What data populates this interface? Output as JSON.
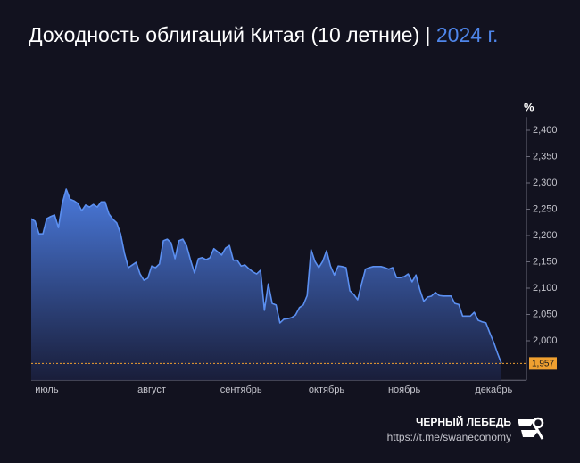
{
  "chart_data": {
    "type": "area",
    "title": "Доходность облигаций Китая (10 летние) |",
    "title_highlight": "2024 г.",
    "y_label": "%",
    "color": "#5b8ff0",
    "categories": [
      null,
      null,
      null,
      null,
      "июль",
      null,
      null,
      null,
      null,
      null,
      null,
      null,
      null,
      null,
      null,
      null,
      null,
      null,
      null,
      null,
      null,
      null,
      null,
      null,
      null,
      null,
      null,
      null,
      null,
      null,
      null,
      "август",
      null,
      null,
      null,
      null,
      null,
      null,
      null,
      null,
      null,
      null,
      null,
      null,
      null,
      null,
      null,
      null,
      null,
      null,
      null,
      null,
      null,
      null,
      "сентябрь",
      null,
      null,
      null,
      null,
      null,
      null,
      null,
      null,
      null,
      null,
      null,
      null,
      null,
      null,
      null,
      null,
      null,
      null,
      null,
      null,
      null,
      "октябрь",
      null,
      null,
      null,
      null,
      null,
      null,
      null,
      null,
      null,
      null,
      null,
      null,
      null,
      null,
      null,
      null,
      null,
      null,
      null,
      "ноябрь",
      null,
      null,
      null,
      null,
      null,
      null,
      null,
      null,
      null,
      null,
      null,
      null,
      null,
      null,
      null,
      null,
      null,
      null,
      null,
      null,
      null,
      null,
      "декабрь",
      null,
      null
    ],
    "values": [
      2.232,
      2.227,
      2.203,
      2.203,
      2.232,
      2.236,
      2.239,
      2.215,
      2.261,
      2.288,
      2.269,
      2.266,
      2.261,
      2.247,
      2.258,
      2.254,
      2.259,
      2.254,
      2.264,
      2.264,
      2.241,
      2.231,
      2.224,
      2.203,
      2.166,
      2.139,
      2.144,
      2.149,
      2.127,
      2.115,
      2.119,
      2.142,
      2.139,
      2.146,
      2.19,
      2.193,
      2.186,
      2.156,
      2.19,
      2.193,
      2.18,
      2.153,
      2.129,
      2.156,
      2.158,
      2.154,
      2.158,
      2.175,
      2.169,
      2.163,
      2.176,
      2.181,
      2.153,
      2.153,
      2.142,
      2.144,
      2.137,
      2.131,
      2.127,
      2.134,
      2.058,
      2.108,
      2.071,
      2.068,
      2.034,
      2.041,
      2.042,
      2.044,
      2.049,
      2.063,
      2.068,
      2.086,
      2.173,
      2.151,
      2.139,
      2.151,
      2.171,
      2.142,
      2.125,
      2.142,
      2.141,
      2.139,
      2.095,
      2.088,
      2.078,
      2.108,
      2.136,
      2.139,
      2.141,
      2.141,
      2.141,
      2.139,
      2.136,
      2.139,
      2.12,
      2.12,
      2.122,
      2.127,
      2.112,
      2.125,
      2.097,
      2.075,
      2.083,
      2.085,
      2.092,
      2.086,
      2.085,
      2.085,
      2.085,
      2.071,
      2.069,
      2.047,
      2.047,
      2.047,
      2.054,
      2.039,
      2.036,
      2.034,
      2.015,
      1.997,
      1.976,
      1.957
    ],
    "ylim": [
      1.925,
      2.425
    ],
    "yticks": [
      {
        "value": 2.0,
        "label": "2,000"
      },
      {
        "value": 2.05,
        "label": "2,050"
      },
      {
        "value": 2.1,
        "label": "2,100"
      },
      {
        "value": 2.15,
        "label": "2,150"
      },
      {
        "value": 2.2,
        "label": "2,200"
      },
      {
        "value": 2.25,
        "label": "2,250"
      },
      {
        "value": 2.3,
        "label": "2,300"
      },
      {
        "value": 2.35,
        "label": "2,350"
      },
      {
        "value": 2.4,
        "label": "2,400"
      }
    ],
    "reference_line": {
      "value": 1.957,
      "label": "1,957",
      "color": "#f0a030"
    }
  },
  "footer": {
    "brand": "ЧЕРНЫЙ ЛЕБЕДЬ",
    "link": "https://t.me/swaneconomy"
  }
}
